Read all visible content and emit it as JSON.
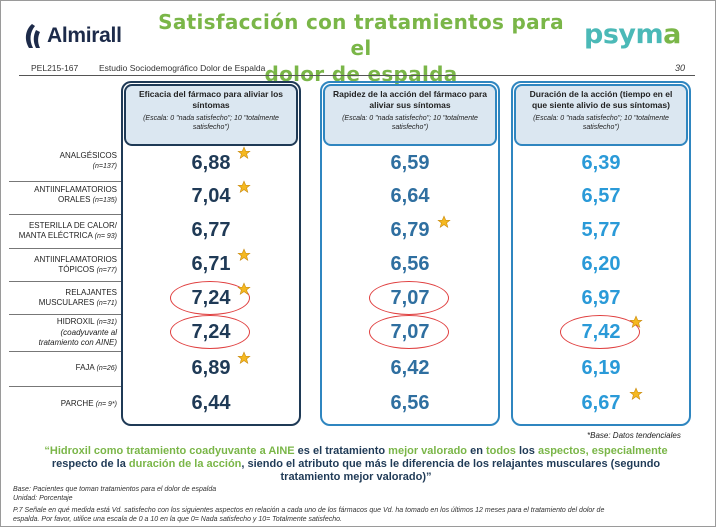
{
  "header": {
    "brand_left": "Almirall",
    "title_line1": "Satisfacción con tratamientos para el",
    "title_line2": "dolor de espalda",
    "brand_right_main": "psym",
    "brand_right_last": "a"
  },
  "subheader": {
    "code": "PEL215-167",
    "study": "Estudio Sociodemográfico Dolor de Espalda",
    "page": "30"
  },
  "columns": [
    {
      "title": "Eficacia del fármaco para aliviar los síntomas",
      "scale": "(Escala: 0 \"nada satisfecho\"; 10 \"totalmente satisfecho\")"
    },
    {
      "title": "Rapidez de la acción del fármaco para aliviar sus síntomas",
      "scale": "(Escala: 0 \"nada satisfecho\"; 10 \"totalmente satisfecho\")"
    },
    {
      "title": "Duración de la acción (tiempo en el que siente alivio de sus síntomas)",
      "scale": "(Escala: 0 \"nada satisfecho\"; 10 \"totalmente satisfecho\")"
    }
  ],
  "rows": [
    {
      "label1": "ANALGÉSICOS",
      "label2": "",
      "n": "(n=137)",
      "v1": "6,88",
      "v2": "6,59",
      "v3": "6,39"
    },
    {
      "label1": "ANTIINFLAMATORIOS",
      "label2": "ORALES",
      "n": "(n=135)",
      "v1": "7,04",
      "v2": "6,64",
      "v3": "6,57"
    },
    {
      "label1": "ESTERILLA DE CALOR/",
      "label2": "MANTA ELÉCTRICA",
      "n": "(n= 93)",
      "v1": "6,77",
      "v2": "6,79",
      "v3": "5,77"
    },
    {
      "label1": "ANTIINFLAMATORIOS",
      "label2": "TÓPICOS",
      "n": "(n=77)",
      "v1": "6,71",
      "v2": "6,56",
      "v3": "6,20"
    },
    {
      "label1": "RELAJANTES",
      "label2": "MUSCULARES",
      "n": "(n=71)",
      "v1": "7,24",
      "v2": "7,07",
      "v3": "6,97"
    },
    {
      "label1": "HIDROXIL",
      "label2": "(coadyuvante al",
      "label3": "tratamiento con AINE)",
      "n": "(n=31)",
      "v1": "7,24",
      "v2": "7,07",
      "v3": "7,42"
    },
    {
      "label1": "FAJA",
      "label2": "",
      "n": "(n=26)",
      "v1": "6,89",
      "v2": "6,42",
      "v3": "6,19"
    },
    {
      "label1": "PARCHE",
      "label2": "",
      "n": "(n= 9*)",
      "v1": "6,44",
      "v2": "6,56",
      "v3": "6,67"
    }
  ],
  "base_note": "*Base: Datos tendenciales",
  "quote": {
    "p1": "“Hidroxil como tratamiento coadyuvante a AINE",
    "p2": " es el tratamiento ",
    "p3": "mejor valorado",
    "p4": " en ",
    "p5": "todos",
    "p6": " los ",
    "p7": "aspectos, especialmente",
    "p8": "respecto de la ",
    "p9": "duración de la acción",
    "p10": ", siendo el atributo que más le diferencia de los relajantes musculares (segundo tratamiento mejor valorado)”"
  },
  "footer": {
    "base": "Base: Pacientes  que toman tratamientos para el dolor de espalda",
    "unit": "Unidad: Porcentaje",
    "question1": "P.7 Señale en qué medida está Vd. satisfecho con los siguientes aspectos en relación a cada uno de los fármacos que Vd. ha tomado en los últimos 12 meses para el tratamiento del dolor de",
    "question2": "espalda. Por favor, utilice una escala de 0 a 10 en la que 0= Nada satisfecho y 10= Totalmente satisfecho."
  },
  "colors": {
    "title_green": "#7ab648",
    "navy": "#1f3a56",
    "blue": "#2f86c0",
    "circle_red": "#e04040",
    "star_gold": "#f5b820"
  }
}
